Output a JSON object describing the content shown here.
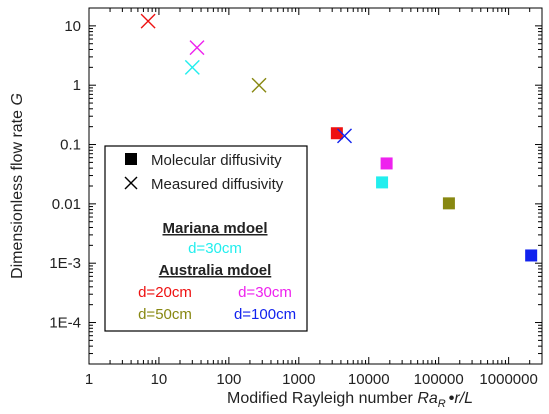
{
  "chart_data": {
    "type": "scatter",
    "title": "",
    "xlabel": "Modified Rayleigh number ",
    "xlabel_symbol": "Ra",
    "xlabel_subscript": "R",
    "xlabel_suffix": "r/L",
    "ylabel": "Dimensionless flow rate ",
    "ylabel_symbol": "G",
    "xscale": "log",
    "yscale": "log",
    "xlim": [
      1,
      3000000
    ],
    "ylim": [
      2e-05,
      20
    ],
    "x_ticks": [
      {
        "value": 1,
        "label": "1"
      },
      {
        "value": 10,
        "label": "10"
      },
      {
        "value": 100,
        "label": "100"
      },
      {
        "value": 1000,
        "label": "1000"
      },
      {
        "value": 10000,
        "label": "10000"
      },
      {
        "value": 100000,
        "label": "100000"
      },
      {
        "value": 1000000,
        "label": "1000000"
      }
    ],
    "y_ticks": [
      {
        "value": 10,
        "label": "10"
      },
      {
        "value": 1,
        "label": "1"
      },
      {
        "value": 0.1,
        "label": "0.1"
      },
      {
        "value": 0.01,
        "label": "0.01"
      },
      {
        "value": 0.001,
        "label": "1E-3"
      },
      {
        "value": 0.0001,
        "label": "1E-4"
      }
    ],
    "grid": false,
    "series": [
      {
        "marker": "square",
        "color": "#ee1111",
        "x": [
          3500
        ],
        "y": [
          0.155
        ]
      },
      {
        "marker": "square",
        "color": "#ee22ee",
        "x": [
          18000
        ],
        "y": [
          0.048
        ]
      },
      {
        "marker": "square",
        "color": "#22eeee",
        "x": [
          15500
        ],
        "y": [
          0.023
        ]
      },
      {
        "marker": "square",
        "color": "#888811",
        "x": [
          140000
        ],
        "y": [
          0.0102
        ]
      },
      {
        "marker": "square",
        "color": "#1122ee",
        "x": [
          2100000
        ],
        "y": [
          0.00135
        ]
      },
      {
        "marker": "cross",
        "color": "#ee1111",
        "x": [
          7
        ],
        "y": [
          12
        ]
      },
      {
        "marker": "cross",
        "color": "#ee22ee",
        "x": [
          35
        ],
        "y": [
          4.3
        ]
      },
      {
        "marker": "cross",
        "color": "#22eeee",
        "x": [
          30
        ],
        "y": [
          2.0
        ]
      },
      {
        "marker": "cross",
        "color": "#888811",
        "x": [
          270
        ],
        "y": [
          1.0
        ]
      },
      {
        "marker": "cross",
        "color": "#1122ee",
        "x": [
          4500
        ],
        "y": [
          0.14
        ]
      }
    ],
    "legend": {
      "placement": "center-left",
      "marker_entries": [
        {
          "marker": "square",
          "label": "Molecular diffusivity"
        },
        {
          "marker": "cross",
          "label": "Measured diffusivity"
        }
      ],
      "groups": [
        {
          "heading": "Mariana mdoel",
          "entries": [
            {
              "label": "d=30cm",
              "color": "#22eeee"
            }
          ]
        },
        {
          "heading": "Australia mdoel",
          "entries": [
            {
              "label": "d=20cm",
              "color": "#ee1111"
            },
            {
              "label": "d=30cm",
              "color": "#ee22ee"
            },
            {
              "label": "d=50cm",
              "color": "#888811"
            },
            {
              "label": "d=100cm",
              "color": "#1122ee"
            }
          ]
        }
      ]
    }
  }
}
